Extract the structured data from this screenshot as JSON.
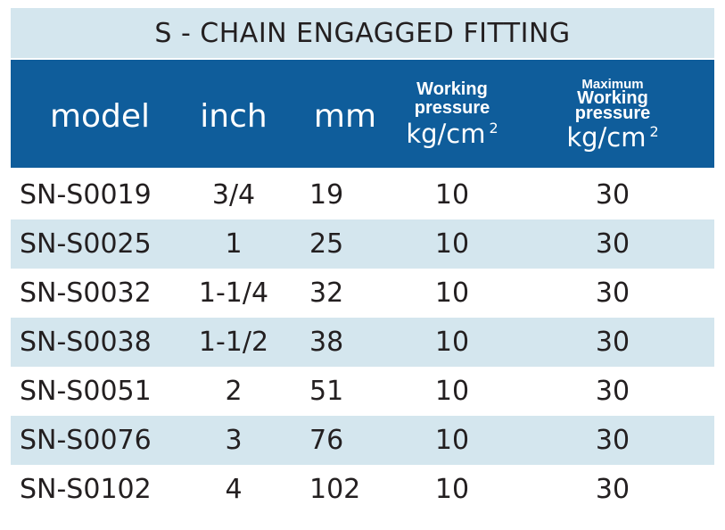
{
  "title": "S - CHAIN ENGAGGED FITTING",
  "header": {
    "model": "model",
    "inch": "inch",
    "mm": "mm",
    "working_pressure": {
      "line1": "Working",
      "line2": "pressure",
      "unit": "kg/cm",
      "unit_sup": "2"
    },
    "max_working_pressure": {
      "line1": "Maximum",
      "line2": "Working",
      "line3": "pressure",
      "unit": "kg/cm",
      "unit_sup": "2"
    }
  },
  "rows": [
    {
      "model": "SN-S0019",
      "inch": "3/4",
      "mm": "19",
      "wp": "10",
      "mwp": "30"
    },
    {
      "model": "SN-S0025",
      "inch": "1",
      "mm": "25",
      "wp": "10",
      "mwp": "30"
    },
    {
      "model": "SN-S0032",
      "inch": "1-1/4",
      "mm": "32",
      "wp": "10",
      "mwp": "30"
    },
    {
      "model": "SN-S0038",
      "inch": "1-1/2",
      "mm": "38",
      "wp": "10",
      "mwp": "30"
    },
    {
      "model": "SN-S0051",
      "inch": "2",
      "mm": "51",
      "wp": "10",
      "mwp": "30"
    },
    {
      "model": "SN-S0076",
      "inch": "3",
      "mm": "76",
      "wp": "10",
      "mwp": "30"
    },
    {
      "model": "SN-S0102",
      "inch": "4",
      "mm": "102",
      "wp": "10",
      "mwp": "30"
    }
  ],
  "colors": {
    "header_bg": "#0f5d9b",
    "shaded_row_bg": "#d4e6ee",
    "text": "#231f20"
  }
}
